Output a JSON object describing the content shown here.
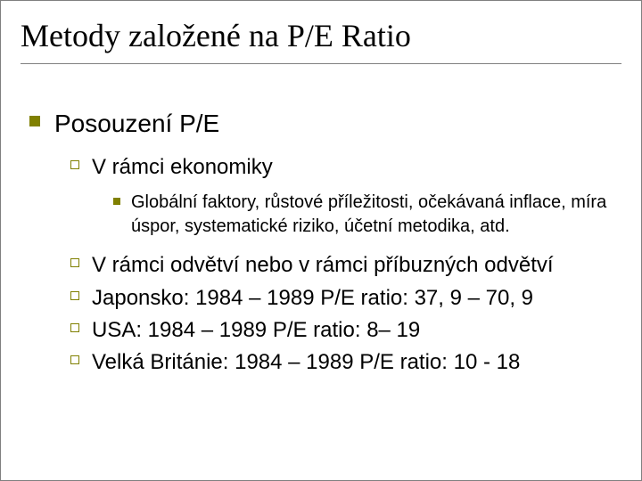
{
  "colors": {
    "background": "#ffffff",
    "text": "#000000",
    "bullet_fill": "#808000",
    "bullet_hollow_border": "#808000",
    "rule": "#808080",
    "frame_border": "#808080"
  },
  "typography": {
    "title_font": "Times New Roman",
    "body_font": "Arial",
    "title_size_pt": 36,
    "lvl1_size_pt": 28,
    "lvl2_size_pt": 24,
    "lvl3_size_pt": 20
  },
  "title": "Metody založené na P/E Ratio",
  "bullets": {
    "lvl1": "Posouzení P/E",
    "lvl2_a": "V rámci ekonomiky",
    "lvl3_a": "Globální faktory, růstové příležitosti, očekávaná inflace, míra úspor, systematické riziko, účetní metodika, atd.",
    "lvl2_b": "V rámci odvětví nebo v rámci příbuzných odvětví",
    "lvl2_c": "Japonsko: 1984 – 1989 P/E ratio: 37, 9 – 70, 9",
    "lvl2_d": "USA: 1984 – 1989 P/E ratio: 8– 19",
    "lvl2_e": "Velká Británie: 1984 – 1989 P/E ratio: 10 - 18"
  }
}
